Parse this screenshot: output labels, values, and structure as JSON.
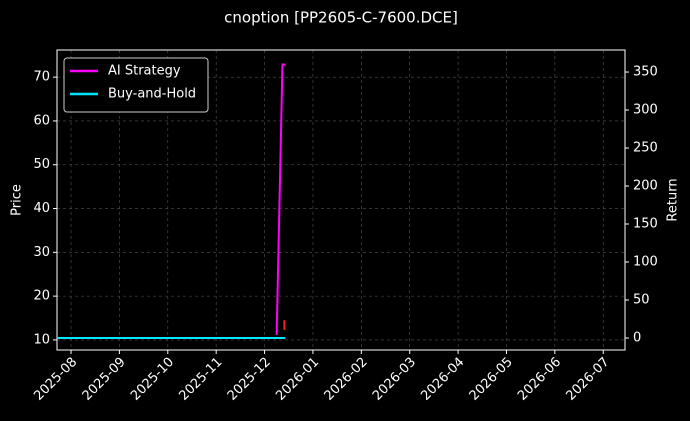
{
  "chart_data": {
    "type": "line",
    "title": "cnoption [PP2605-C-7600.DCE]",
    "ylabel": "Price",
    "y2label": "Return",
    "xlim": [
      -0.29,
      11.45
    ],
    "xticks": [
      {
        "value": 0,
        "label": "2025-08"
      },
      {
        "value": 1,
        "label": "2025-09"
      },
      {
        "value": 2,
        "label": "2025-10"
      },
      {
        "value": 3,
        "label": "2025-11"
      },
      {
        "value": 4,
        "label": "2025-12"
      },
      {
        "value": 5,
        "label": "2026-01"
      },
      {
        "value": 6,
        "label": "2026-02"
      },
      {
        "value": 7,
        "label": "2026-03"
      },
      {
        "value": 8,
        "label": "2026-04"
      },
      {
        "value": 9,
        "label": "2026-05"
      },
      {
        "value": 10,
        "label": "2026-06"
      },
      {
        "value": 11,
        "label": "2026-07"
      }
    ],
    "ylim": [
      7.7,
      76.2
    ],
    "yticks": [
      10,
      20,
      30,
      40,
      50,
      60,
      70
    ],
    "y2lim": [
      -15.8,
      379
    ],
    "y2ticks": [
      0,
      50,
      100,
      150,
      200,
      250,
      300,
      350
    ],
    "grid": true,
    "legend": "upper left",
    "series": [
      {
        "name": "AI Strategy",
        "color": "#ff00ff",
        "axis": "y2",
        "x": [
          4.25,
          4.37,
          4.43
        ],
        "values": [
          4,
          360,
          360
        ]
      },
      {
        "name": "Buy-and-Hold",
        "color": "#00e5ff",
        "axis": "y2",
        "x": [
          -0.29,
          4.43
        ],
        "values": [
          0,
          0
        ]
      },
      {
        "color": "#ff2020",
        "axis": "y",
        "x": [
          4.41,
          4.41
        ],
        "values": [
          12.3,
          14.5
        ]
      }
    ]
  }
}
